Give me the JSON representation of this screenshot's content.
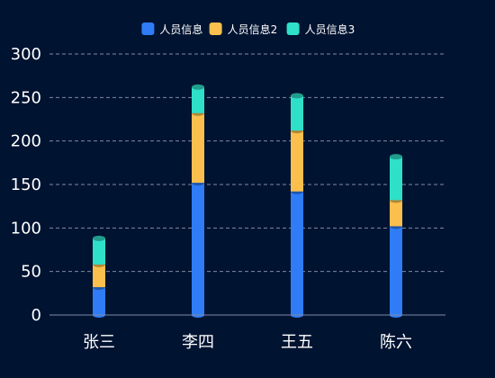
{
  "chart_data": {
    "type": "bar",
    "stacked": true,
    "categories": [
      "张三",
      "李四",
      "王五",
      "陈六"
    ],
    "series": [
      {
        "name": "人员信息",
        "color": "#2f7cf6",
        "values": [
          32,
          152,
          142,
          102
        ]
      },
      {
        "name": "人员信息2",
        "color": "#fbbf4d",
        "values": [
          26,
          80,
          70,
          30
        ]
      },
      {
        "name": "人员信息3",
        "color": "#2ee0c8",
        "values": [
          30,
          30,
          40,
          50
        ]
      }
    ],
    "ylim": [
      0,
      300
    ],
    "yticks": [
      "0",
      "50",
      "100",
      "150",
      "200",
      "250",
      "300"
    ],
    "grid": true,
    "legend_position": "top-center",
    "title": "",
    "xlabel": "",
    "ylabel": ""
  }
}
